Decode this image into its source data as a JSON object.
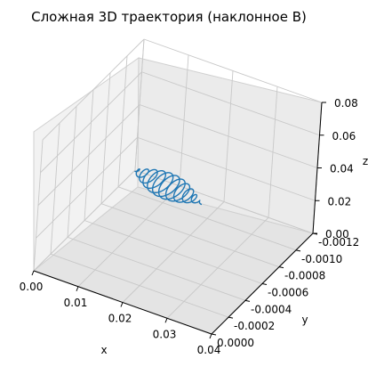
{
  "title": "Сложная 3D траектория (наклонное B)",
  "chart_data": {
    "type": "line",
    "projection": "3d",
    "title": "Сложная 3D траектория (наклонное B)",
    "xlabel": "x",
    "ylabel": "y",
    "zlabel": "z",
    "xlim": [
      0.0,
      0.04
    ],
    "ylim": [
      -0.0012,
      0.0
    ],
    "zlim": [
      0.0,
      0.08
    ],
    "x_ticks": [
      "0.00",
      "0.01",
      "0.02",
      "0.03",
      "0.04"
    ],
    "y_ticks": [
      "-0.0012",
      "-0.0010",
      "-0.0008",
      "-0.0006",
      "-0.0004",
      "-0.0002",
      "0.0000"
    ],
    "z_ticks": [
      "0.00",
      "0.02",
      "0.04",
      "0.06",
      "0.08"
    ],
    "grid": true,
    "line_color": "#1f77b4",
    "series": [
      {
        "loops": 11,
        "x_range": [
          0.0,
          0.036
        ],
        "y_range": [
          -0.0012,
          0.0
        ],
        "z_range": [
          0.0,
          0.076
        ],
        "start": [
          0.0,
          -0.0012,
          0.0
        ],
        "end": [
          0.036,
          0.0,
          0.076
        ]
      }
    ]
  }
}
